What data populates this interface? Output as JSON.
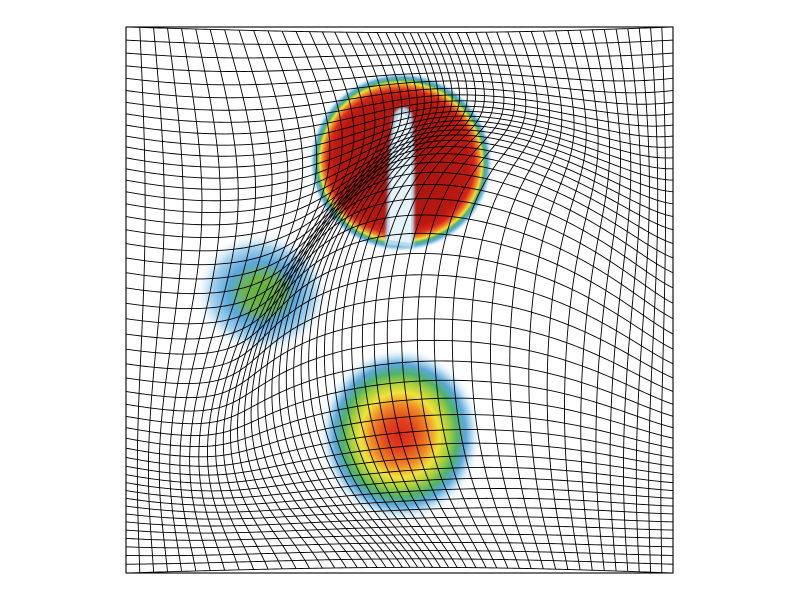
{
  "figure": {
    "description_visible_text": "",
    "colors": {
      "grid_line": "#000000",
      "background": "#ffffff",
      "colormap": [
        "#ffffff",
        "#cfe8f6",
        "#5aa8dc",
        "#4fb36a",
        "#a6cf3a",
        "#f2e23a",
        "#f08a24",
        "#d9261c",
        "#a5140f"
      ]
    },
    "grid": {
      "rows": 48,
      "cols": 48
    },
    "blobs": [
      {
        "name": "upper-split-blob",
        "peak": 1.0
      },
      {
        "name": "left-blob",
        "peak": 0.45
      },
      {
        "name": "lower-blob",
        "peak": 0.85
      }
    ]
  }
}
